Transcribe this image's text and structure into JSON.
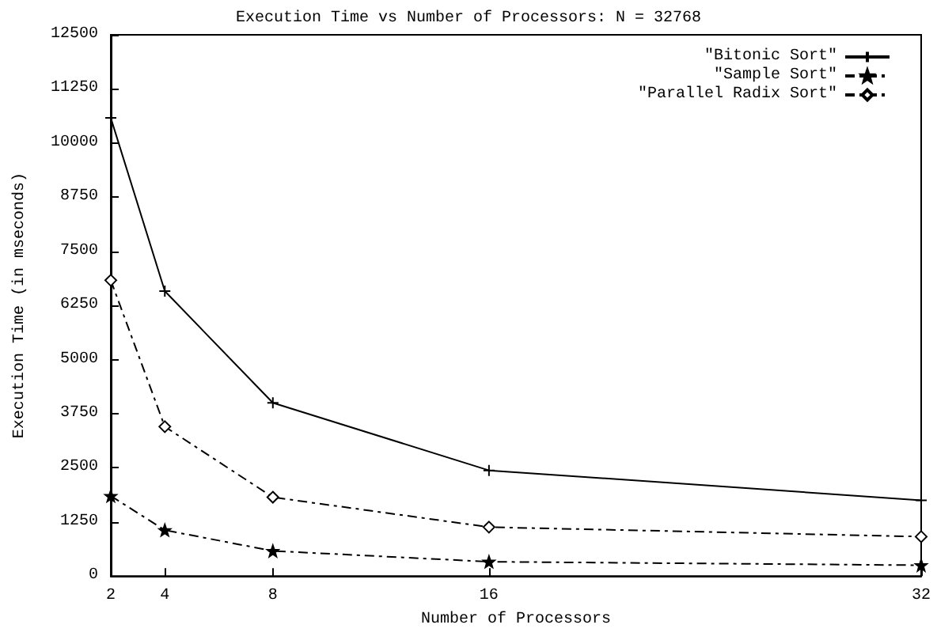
{
  "chart_data": {
    "type": "line",
    "title": "Execution Time vs Number of Processors: N = 32768",
    "xlabel": "Number of Processors",
    "ylabel": "Execution Time (in mseconds)",
    "x": [
      2,
      4,
      8,
      16,
      32
    ],
    "series": [
      {
        "name": "\"Bitonic Sort\"",
        "color": "#000000",
        "marker": "cross",
        "line_style": "solid",
        "values": [
          10580,
          6580,
          4000,
          2440,
          1750
        ]
      },
      {
        "name": "\"Sample Sort\"",
        "color": "#000000",
        "marker": "star",
        "line_style": "dashed",
        "values": [
          1850,
          1060,
          580,
          330,
          250
        ]
      },
      {
        "name": "\"Parallel Radix Sort\"",
        "color": "#000000",
        "marker": "diamond",
        "line_style": "dashed",
        "values": [
          6830,
          3450,
          1820,
          1130,
          910
        ]
      }
    ],
    "xlim": [
      2,
      32
    ],
    "xticks": [
      2,
      4,
      8,
      16,
      32
    ],
    "ylim": [
      0,
      12500
    ],
    "yticks": [
      0,
      1250,
      2500,
      3750,
      5000,
      6250,
      7500,
      8750,
      10000,
      11250,
      12500
    ],
    "grid": false,
    "legend": "top right"
  }
}
